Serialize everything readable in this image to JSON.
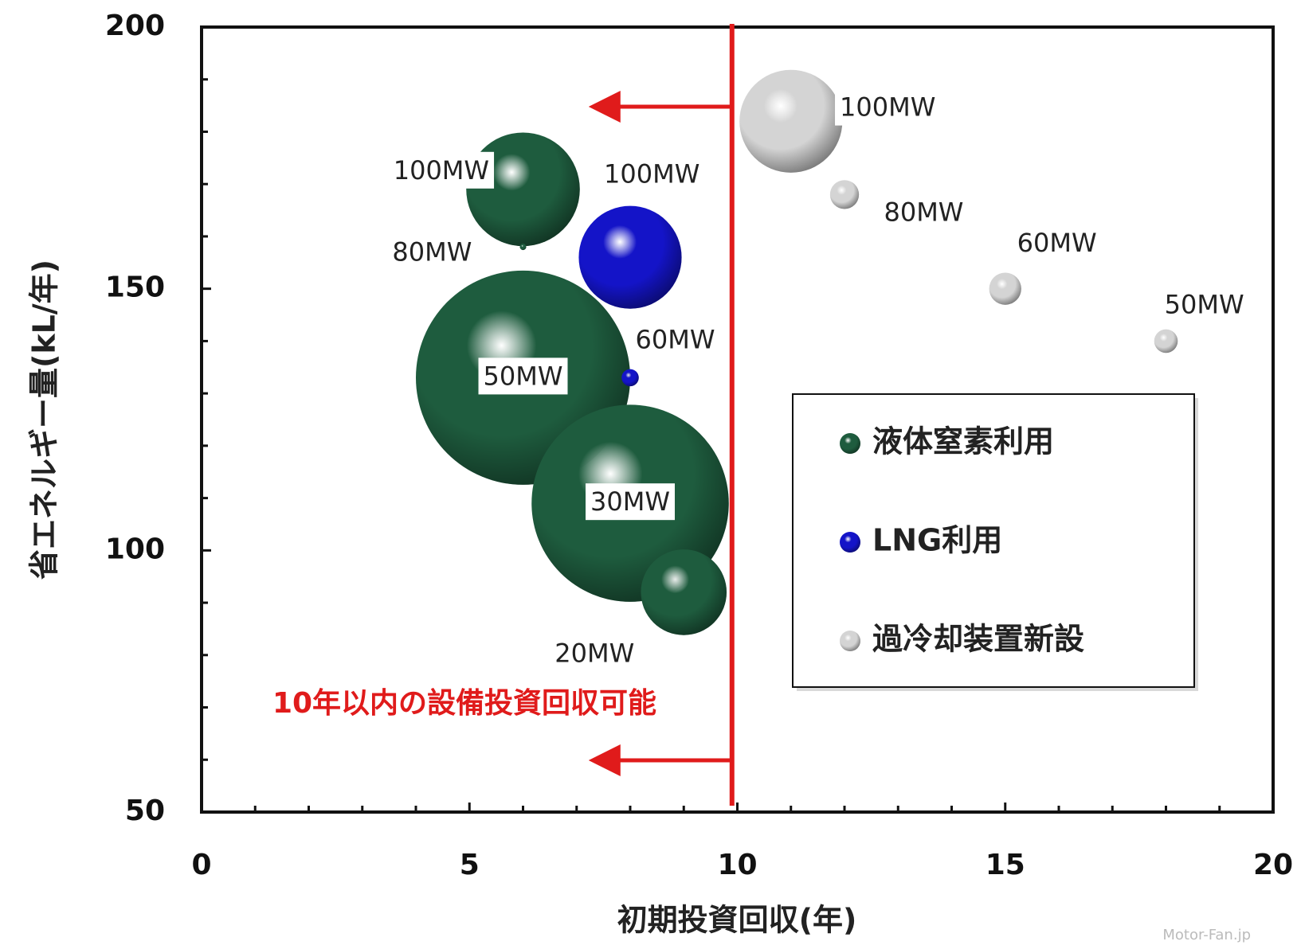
{
  "chart_data": {
    "type": "bubble",
    "x_label": "初期投資回収(年)",
    "y_label": "省エネルギー量(kL/年)",
    "xlim": [
      0,
      20
    ],
    "xticks": [
      0,
      5,
      10,
      15,
      20
    ],
    "xminorticks": [
      1,
      2,
      3,
      4,
      6,
      7,
      8,
      9,
      11,
      12,
      13,
      14,
      16,
      17,
      18,
      19
    ],
    "ylim": [
      50,
      200
    ],
    "yticks": [
      50,
      100,
      150,
      200
    ],
    "yminorticks": [
      60,
      70,
      80,
      90,
      110,
      120,
      130,
      140,
      160,
      170,
      180,
      190
    ],
    "reference_line": {
      "x": 9.9
    },
    "annotation": "10年以内の設備投資回収可能",
    "watermark": "Motor-Fan.jp",
    "series": [
      {
        "name": "液体窒素利用",
        "color": "#1e5c3e",
        "x": [
          6,
          6,
          6,
          8,
          9
        ],
        "values": [
          169,
          158,
          133,
          109,
          92
        ],
        "sizes": [
          1.06,
          0.06,
          2.0,
          1.84,
          0.8
        ],
        "labels": [
          "100MW",
          "80MW",
          "50MW",
          "30MW",
          "20MW"
        ]
      },
      {
        "name": "LNG利用",
        "color": "#1414c8",
        "x": [
          8,
          8
        ],
        "values": [
          156,
          133
        ],
        "sizes": [
          0.96,
          0.16
        ],
        "labels": [
          "100MW",
          "60MW"
        ]
      },
      {
        "name": "過冷却装置新設",
        "color": "#d4d4d4",
        "x": [
          11,
          12,
          15,
          18
        ],
        "values": [
          182,
          168,
          150,
          140
        ],
        "sizes": [
          0.96,
          0.27,
          0.3,
          0.22
        ],
        "labels": [
          "100MW",
          "80MW",
          "60MW",
          "50MW"
        ]
      }
    ]
  }
}
